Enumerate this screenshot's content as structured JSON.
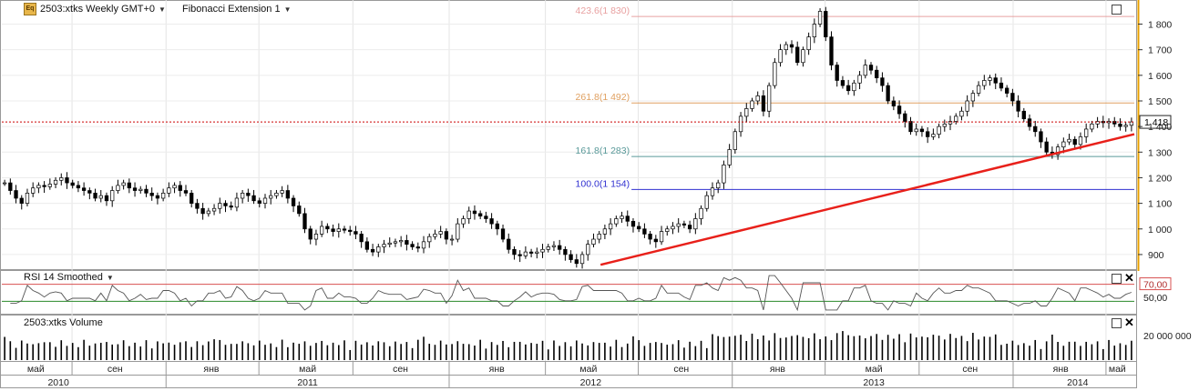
{
  "header": {
    "icon_label": "Eq",
    "symbol": "2503:xtks Weekly GMT+0",
    "indicator": "Fibonacci Extension 1"
  },
  "rsi_panel": {
    "label": "RSI 14 Smoothed",
    "level_70": "70,00",
    "level_50": "50,00"
  },
  "volume_panel": {
    "label": "2503:xtks Volume",
    "axis_label": "20 000 000"
  },
  "last_price": "1 418",
  "colors": {
    "trendline": "#e8201a",
    "last_price_line": "#cc0000",
    "rsi_upper": "#d85050",
    "rsi_lower": "#2a8a2a"
  },
  "chart_data": {
    "type": "candlestick",
    "ylim": [
      850,
      1880
    ],
    "y_ticks": [
      900,
      1000,
      1100,
      1200,
      1300,
      1400,
      1500,
      1600,
      1700,
      1800
    ],
    "y_tick_labels": [
      "900",
      "1 000",
      "1 100",
      "1 200",
      "1 300",
      "1 400",
      "1 500",
      "1 600",
      "1 700",
      "1 800"
    ],
    "fib_levels": [
      {
        "label": "423.6(1 830)",
        "price": 1830,
        "color": "#e8a0a0"
      },
      {
        "label": "261.8(1 492)",
        "price": 1492,
        "color": "#e0a060"
      },
      {
        "label": "161.8(1 283)",
        "price": 1283,
        "color": "#5a9a9a"
      },
      {
        "label": "100.0(1 154)",
        "price": 1154,
        "color": "#3030d0"
      }
    ],
    "month_ticks": [
      "май",
      "сен",
      "янв",
      "май",
      "сен",
      "янв",
      "май",
      "сен",
      "янв",
      "май",
      "сен",
      "янв",
      "май"
    ],
    "years": [
      "2010",
      "2011",
      "2012",
      "2013",
      "2014"
    ],
    "trendline": {
      "from": [
        0.5287,
        860
      ],
      "to": [
        1.0,
        1370
      ]
    },
    "closes": [
      1180,
      1150,
      1120,
      1100,
      1140,
      1160,
      1170,
      1165,
      1175,
      1190,
      1200,
      1180,
      1170,
      1160,
      1150,
      1140,
      1120,
      1130,
      1110,
      1150,
      1170,
      1180,
      1160,
      1150,
      1155,
      1140,
      1130,
      1120,
      1140,
      1160,
      1170,
      1150,
      1140,
      1100,
      1080,
      1060,
      1070,
      1080,
      1100,
      1090,
      1085,
      1120,
      1140,
      1130,
      1110,
      1100,
      1120,
      1130,
      1140,
      1150,
      1120,
      1090,
      1060,
      1000,
      960,
      980,
      1010,
      1000,
      990,
      1000,
      995,
      990,
      980,
      950,
      920,
      910,
      930,
      940,
      945,
      950,
      955,
      940,
      930,
      925,
      950,
      970,
      980,
      990,
      960,
      960,
      1020,
      1040,
      1070,
      1060,
      1050,
      1040,
      1020,
      1000,
      960,
      920,
      900,
      895,
      910,
      905,
      910,
      920,
      930,
      935,
      920,
      900,
      880,
      865,
      900,
      940,
      960,
      980,
      1000,
      1020,
      1040,
      1050,
      1030,
      1010,
      1000,
      980,
      960,
      950,
      990,
      1000,
      1010,
      1020,
      1015,
      1000,
      1040,
      1080,
      1130,
      1160,
      1180,
      1250,
      1310,
      1380,
      1440,
      1470,
      1500,
      1520,
      1460,
      1560,
      1650,
      1700,
      1720,
      1710,
      1650,
      1700,
      1750,
      1800,
      1850,
      1750,
      1640,
      1580,
      1560,
      1540,
      1570,
      1600,
      1640,
      1620,
      1590,
      1560,
      1500,
      1480,
      1450,
      1420,
      1380,
      1390,
      1380,
      1360,
      1370,
      1400,
      1410,
      1420,
      1440,
      1460,
      1500,
      1530,
      1560,
      1580,
      1590,
      1570,
      1550,
      1530,
      1500,
      1460,
      1430,
      1400,
      1380,
      1340,
      1300,
      1290,
      1320,
      1340,
      1350,
      1330,
      1360,
      1390,
      1410,
      1420,
      1415,
      1420,
      1410,
      1400,
      1405,
      1418
    ],
    "rsi_levels": [
      70,
      50
    ],
    "volume_axis": [
      "20 000 000"
    ]
  }
}
